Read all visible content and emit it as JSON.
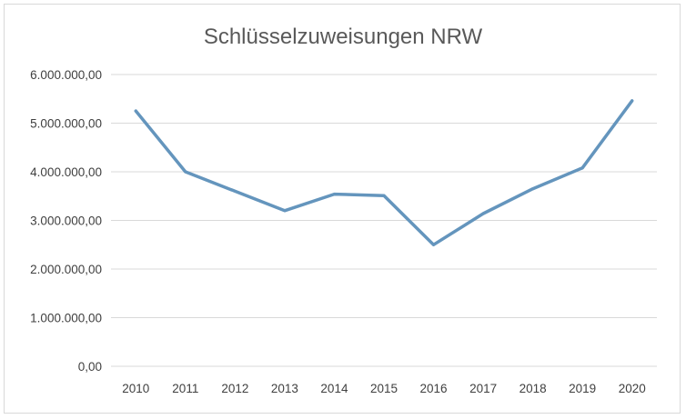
{
  "chart_data": {
    "type": "line",
    "title": "Schlüsselzuweisungen NRW",
    "xlabel": "",
    "ylabel": "",
    "categories": [
      "2010",
      "2011",
      "2012",
      "2013",
      "2014",
      "2015",
      "2016",
      "2017",
      "2018",
      "2019",
      "2020"
    ],
    "series": [
      {
        "values": [
          5250000,
          4000000,
          3600000,
          3200000,
          3540000,
          3510000,
          2500000,
          3140000,
          3650000,
          4080000,
          5460000
        ],
        "color": "#6495bd"
      }
    ],
    "ylim": [
      0,
      6000000
    ],
    "y_ticks": [
      {
        "value": 0,
        "label": "0,00"
      },
      {
        "value": 1000000,
        "label": "1.000.000,00"
      },
      {
        "value": 2000000,
        "label": "2.000.000,00"
      },
      {
        "value": 3000000,
        "label": "3.000.000,00"
      },
      {
        "value": 4000000,
        "label": "4.000.000,00"
      },
      {
        "value": 5000000,
        "label": "5.000.000,00"
      },
      {
        "value": 6000000,
        "label": "6.000.000,00"
      }
    ],
    "grid": true,
    "legend": "none"
  }
}
